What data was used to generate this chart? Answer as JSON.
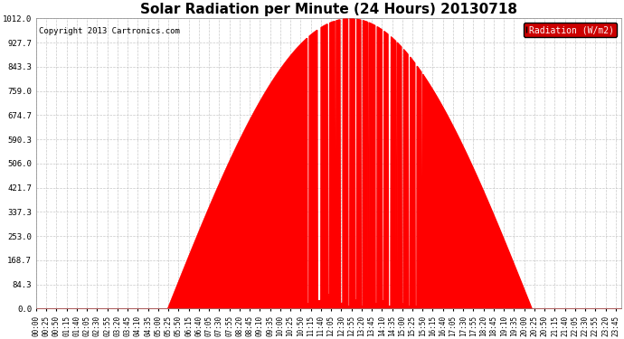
{
  "title": "Solar Radiation per Minute (24 Hours) 20130718",
  "copyright_text": "Copyright 2013 Cartronics.com",
  "legend_label": "Radiation (W/m2)",
  "ytick_values": [
    0.0,
    84.3,
    168.7,
    253.0,
    337.3,
    421.7,
    506.0,
    590.3,
    674.7,
    759.0,
    843.3,
    927.7,
    1012.0
  ],
  "ymax": 1012.0,
  "fill_color": "#FF0000",
  "line_color": "#FF0000",
  "bg_color": "#FFFFFF",
  "grid_color": "#BBBBBB",
  "title_fontsize": 11,
  "copyright_fontsize": 6.5,
  "legend_bg": "#CC0000",
  "legend_text_color": "#FFFFFF",
  "total_minutes": 1440,
  "sunrise_min": 323,
  "sunset_min": 1218,
  "peak_value": 1012.0,
  "tick_interval": 25
}
